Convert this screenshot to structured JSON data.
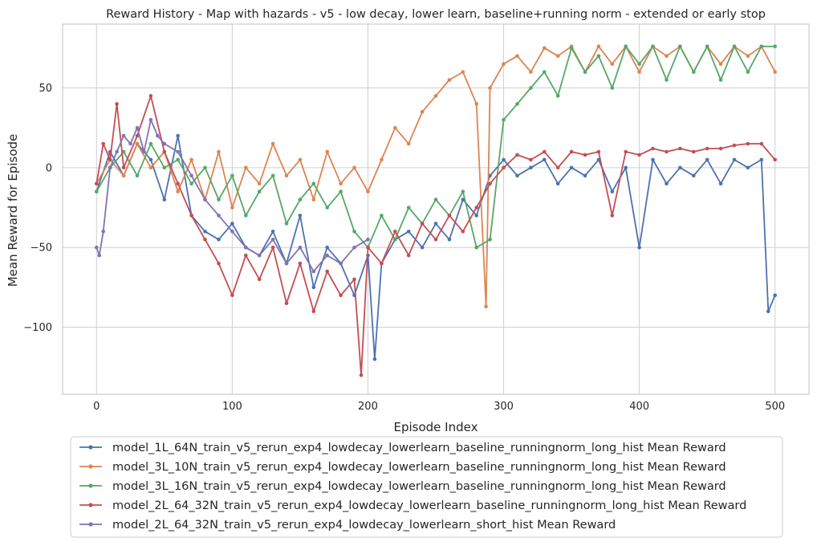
{
  "chart_data": {
    "type": "line",
    "title": "Reward History - Map with hazards - v5 - low decay, lower learn, baseline+running norm - extended or early stop",
    "xlabel": "Episode Index",
    "ylabel": "Mean Reward for Episode",
    "xlim": [
      -25,
      525
    ],
    "ylim": [
      -142,
      90
    ],
    "x_ticks": [
      0,
      100,
      200,
      300,
      400,
      500
    ],
    "x_tick_labels": [
      "0",
      "100",
      "200",
      "300",
      "400",
      "500"
    ],
    "y_ticks": [
      -100,
      -50,
      0,
      50
    ],
    "y_tick_labels": [
      "−100",
      "−50",
      "0",
      "50"
    ],
    "grid": true,
    "legend_placement": "below plot",
    "series": [
      {
        "name": "model_1L_64N_train_v5_rerun_exp4_lowdecay_lowerlearn_baseline_runningnorm_long_hist Mean Reward",
        "color": "#4c72b0",
        "x": [
          0,
          10,
          20,
          30,
          40,
          50,
          60,
          70,
          80,
          90,
          100,
          110,
          120,
          130,
          140,
          150,
          160,
          170,
          180,
          190,
          200,
          205,
          210,
          220,
          230,
          240,
          250,
          260,
          270,
          280,
          290,
          300,
          310,
          320,
          330,
          340,
          350,
          360,
          370,
          380,
          390,
          400,
          410,
          420,
          430,
          440,
          450,
          460,
          470,
          480,
          490,
          495,
          500
        ],
        "y": [
          -15,
          10,
          -5,
          15,
          5,
          -20,
          20,
          -30,
          -40,
          -45,
          -35,
          -50,
          -55,
          -40,
          -60,
          -30,
          -75,
          -50,
          -60,
          -80,
          -55,
          -120,
          -60,
          -45,
          -40,
          -50,
          -35,
          -45,
          -20,
          -30,
          -5,
          5,
          -5,
          0,
          5,
          -10,
          0,
          -5,
          5,
          -15,
          0,
          -50,
          5,
          -10,
          0,
          -5,
          5,
          -10,
          5,
          0,
          5,
          -90,
          -80
        ]
      },
      {
        "name": "model_3L_10N_train_v5_rerun_exp4_lowdecay_lowerlearn_baseline_runningnorm_long_hist Mean Reward",
        "color": "#dd8452",
        "x": [
          0,
          10,
          20,
          30,
          40,
          50,
          60,
          70,
          80,
          90,
          100,
          110,
          120,
          130,
          140,
          150,
          160,
          170,
          180,
          190,
          200,
          210,
          220,
          230,
          240,
          250,
          260,
          270,
          280,
          287,
          290,
          300,
          310,
          320,
          330,
          340,
          350,
          360,
          370,
          380,
          390,
          400,
          410,
          420,
          430,
          440,
          450,
          460,
          470,
          480,
          490,
          500
        ],
        "y": [
          -10,
          5,
          -5,
          15,
          0,
          10,
          -15,
          5,
          -20,
          10,
          -25,
          0,
          -10,
          15,
          -5,
          5,
          -20,
          10,
          -10,
          0,
          -15,
          5,
          25,
          15,
          35,
          45,
          55,
          60,
          40,
          -87,
          50,
          65,
          70,
          60,
          75,
          70,
          76,
          60,
          76,
          65,
          76,
          60,
          76,
          70,
          76,
          60,
          76,
          65,
          76,
          70,
          76,
          60
        ]
      },
      {
        "name": "model_3L_16N_train_v5_rerun_exp4_lowdecay_lowerlearn_baseline_runningnorm_long_hist Mean Reward",
        "color": "#55a868",
        "x": [
          0,
          10,
          20,
          30,
          40,
          50,
          60,
          70,
          80,
          90,
          100,
          110,
          120,
          130,
          140,
          150,
          160,
          170,
          180,
          190,
          200,
          210,
          220,
          230,
          240,
          250,
          260,
          270,
          280,
          290,
          300,
          310,
          320,
          330,
          340,
          350,
          360,
          370,
          380,
          390,
          400,
          410,
          420,
          430,
          440,
          450,
          460,
          470,
          480,
          490,
          500
        ],
        "y": [
          -15,
          0,
          10,
          -5,
          15,
          0,
          5,
          -10,
          0,
          -20,
          -5,
          -30,
          -15,
          -5,
          -35,
          -20,
          -10,
          -25,
          -15,
          -40,
          -50,
          -30,
          -45,
          -25,
          -35,
          -20,
          -30,
          -15,
          -50,
          -45,
          30,
          40,
          50,
          60,
          45,
          75,
          60,
          70,
          50,
          76,
          65,
          76,
          55,
          76,
          60,
          76,
          55,
          76,
          60,
          76,
          76
        ]
      },
      {
        "name": "model_2L_64_32N_train_v5_rerun_exp4_lowdecay_lowerlearn_baseline_runningnorm_long_hist Mean Reward",
        "color": "#c44e52",
        "x": [
          0,
          5,
          10,
          15,
          20,
          30,
          40,
          50,
          60,
          70,
          80,
          90,
          100,
          110,
          120,
          130,
          140,
          150,
          160,
          170,
          180,
          190,
          195,
          200,
          210,
          220,
          230,
          240,
          250,
          260,
          270,
          280,
          290,
          300,
          310,
          320,
          330,
          340,
          350,
          360,
          370,
          380,
          390,
          400,
          410,
          420,
          430,
          440,
          450,
          460,
          470,
          480,
          490,
          500
        ],
        "y": [
          -10,
          15,
          5,
          40,
          0,
          20,
          45,
          10,
          -10,
          -30,
          -45,
          -60,
          -80,
          -55,
          -70,
          -50,
          -85,
          -60,
          -90,
          -65,
          -80,
          -70,
          -130,
          -50,
          -60,
          -40,
          -55,
          -35,
          -45,
          -30,
          -40,
          -25,
          -10,
          0,
          8,
          5,
          10,
          0,
          10,
          8,
          10,
          -30,
          10,
          8,
          12,
          10,
          12,
          10,
          12,
          12,
          14,
          15,
          15,
          5
        ]
      },
      {
        "name": "model_2L_64_32N_train_v5_rerun_exp4_lowdecay_lowerlearn_short_hist Mean Reward",
        "color": "#8172b2",
        "x": [
          0,
          2,
          5,
          10,
          15,
          20,
          25,
          30,
          35,
          40,
          45,
          50,
          60,
          70,
          80,
          90,
          100,
          110,
          120,
          130,
          140,
          150,
          160,
          170,
          180,
          190,
          200
        ],
        "y": [
          -50,
          -55,
          -40,
          0,
          10,
          20,
          15,
          25,
          10,
          30,
          20,
          15,
          10,
          -5,
          -20,
          -30,
          -40,
          -50,
          -55,
          -45,
          -60,
          -50,
          -65,
          -55,
          -60,
          -50,
          -45
        ]
      }
    ]
  }
}
